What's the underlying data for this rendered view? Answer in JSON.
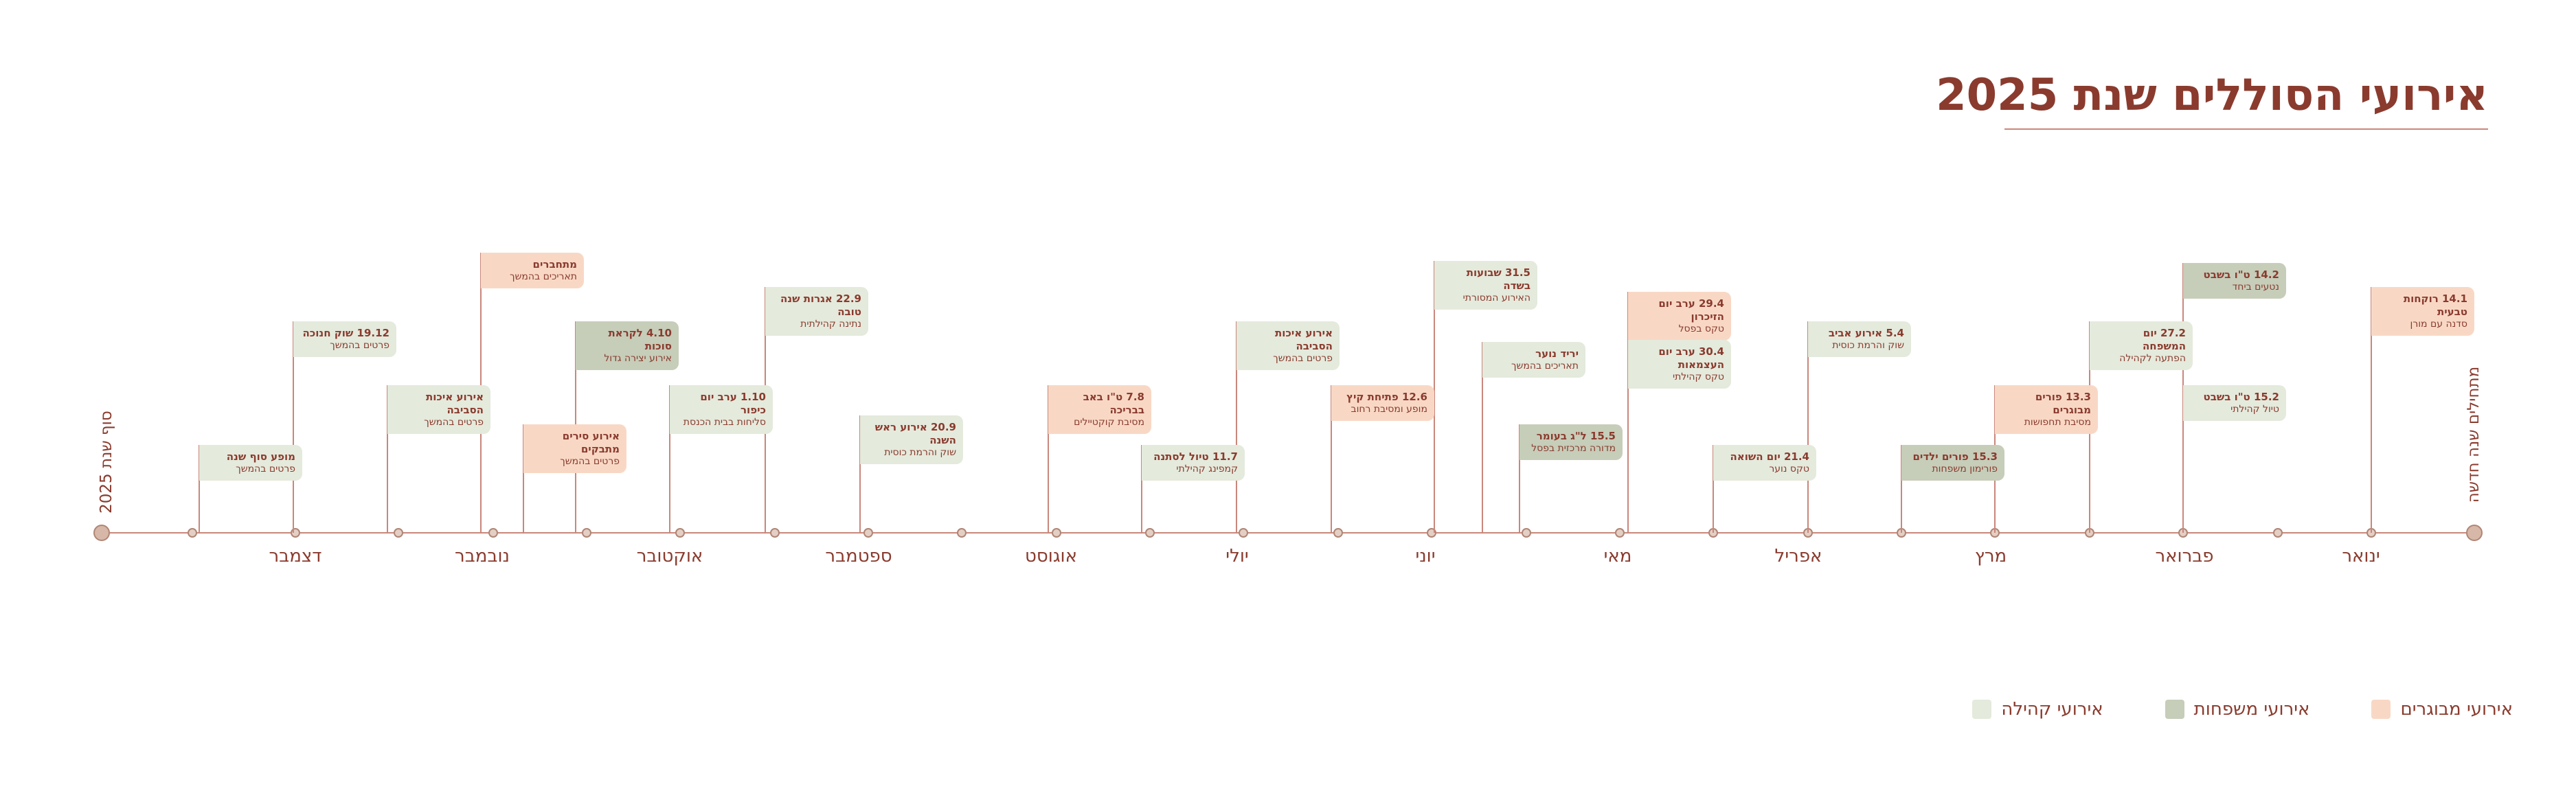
{
  "title": "אירועי הסוללים שנת 2025",
  "timeline": {
    "start_label": "מתחילים שנה חדשה",
    "end_label": "סוף שנת 2025",
    "months": [
      "ינואר",
      "פברואר",
      "מרץ",
      "אפריל",
      "מאי",
      "יוני",
      "יולי",
      "אוגוסט",
      "ספטמבר",
      "אוקטובר",
      "נובמבר",
      "דצמבר"
    ]
  },
  "colors": {
    "community": "#e4eadc",
    "family": "#c6cdb9",
    "adult": "#f8d8c5",
    "accent": "#8a3b2e",
    "line": "#c9877b"
  },
  "events": [
    {
      "title": "14.1 רוקחות טבעית",
      "sub": "סדנה עם מורן",
      "type": "adult"
    },
    {
      "title": "14.2 ט\"ו בשבט",
      "sub": "נטעים ביחד",
      "type": "family"
    },
    {
      "title": "15.2 ט\"ו בשבט",
      "sub": "טיול קהילתי",
      "type": "community"
    },
    {
      "title": "27.2 יום המשפחה",
      "sub": "הפתעה לקהילה",
      "type": "community"
    },
    {
      "title": "13.3 פורים מבוגרים",
      "sub": "מסיבת תחפושות",
      "type": "adult"
    },
    {
      "title": "15.3 פורים ילדים",
      "sub": "פורימון משפחות",
      "type": "family"
    },
    {
      "title": "5.4 אירוע אביב",
      "sub": "שוק והרמת כוסית",
      "type": "community"
    },
    {
      "title": "21.4 יום השואה",
      "sub": "טקס נוער",
      "type": "community"
    },
    {
      "title": "29.4 ערב יום הזיכרון",
      "sub": "טקס בפסל",
      "type": "adult"
    },
    {
      "title": "30.4 ערב יום העצמאות",
      "sub": "טקס קהילתי",
      "type": "community"
    },
    {
      "title": "15.5 ל\"ג בעומר",
      "sub": "מדורה מרכזית בפסל",
      "type": "family"
    },
    {
      "title": "יריד נוער",
      "sub": "תאריכים בהמשך",
      "type": "community"
    },
    {
      "title": "31.5 שבועות בשדה",
      "sub": "האירוע המסורתי",
      "type": "community"
    },
    {
      "title": "12.6 פתיחת קיץ",
      "sub": "מופע ומסיבת רחוב",
      "type": "adult"
    },
    {
      "title": "אירוע איכות הסביבה",
      "sub": "פרטים בהמשך",
      "type": "community"
    },
    {
      "title": "11.7 טיול לסתנה",
      "sub": "קמפינג קהילתי",
      "type": "community"
    },
    {
      "title": "7.8 ט\"ו באב בבריכה",
      "sub": "מסיבת קוקטיילים",
      "type": "adult"
    },
    {
      "title": "20.9 אירוע ראש השנה",
      "sub": "שוק והרמת כוסית",
      "type": "community"
    },
    {
      "title": "22.9 אגרות שנה טובה",
      "sub": "נתינה קהילתית",
      "type": "community"
    },
    {
      "title": "1.10 ערב יום כיפור",
      "sub": "סליחות בבית הכנסת",
      "type": "community"
    },
    {
      "title": "4.10 לקראת סוכות",
      "sub": "אירוע יצירה גדול",
      "type": "family"
    },
    {
      "title": "אירוע סירים מתבקים",
      "sub": "פרטים בהמשך",
      "type": "adult"
    },
    {
      "title": "מתחברים",
      "sub": "תאריכים בהמשך",
      "type": "adult"
    },
    {
      "title": "אירוע איכות הסביבה",
      "sub": "פרטים בהמשך",
      "type": "community"
    },
    {
      "title": "19.12 שוק חנוכה",
      "sub": "פרטים בהמשך",
      "type": "community"
    },
    {
      "title": "מופע סוף שנה",
      "sub": "פרטים בהמשך",
      "type": "community"
    }
  ],
  "legend": [
    {
      "label": "אירועי קהילה",
      "type": "community"
    },
    {
      "label": "אירועי משפחות",
      "type": "family"
    },
    {
      "label": "אירועי מבוגרים",
      "type": "adult"
    }
  ]
}
